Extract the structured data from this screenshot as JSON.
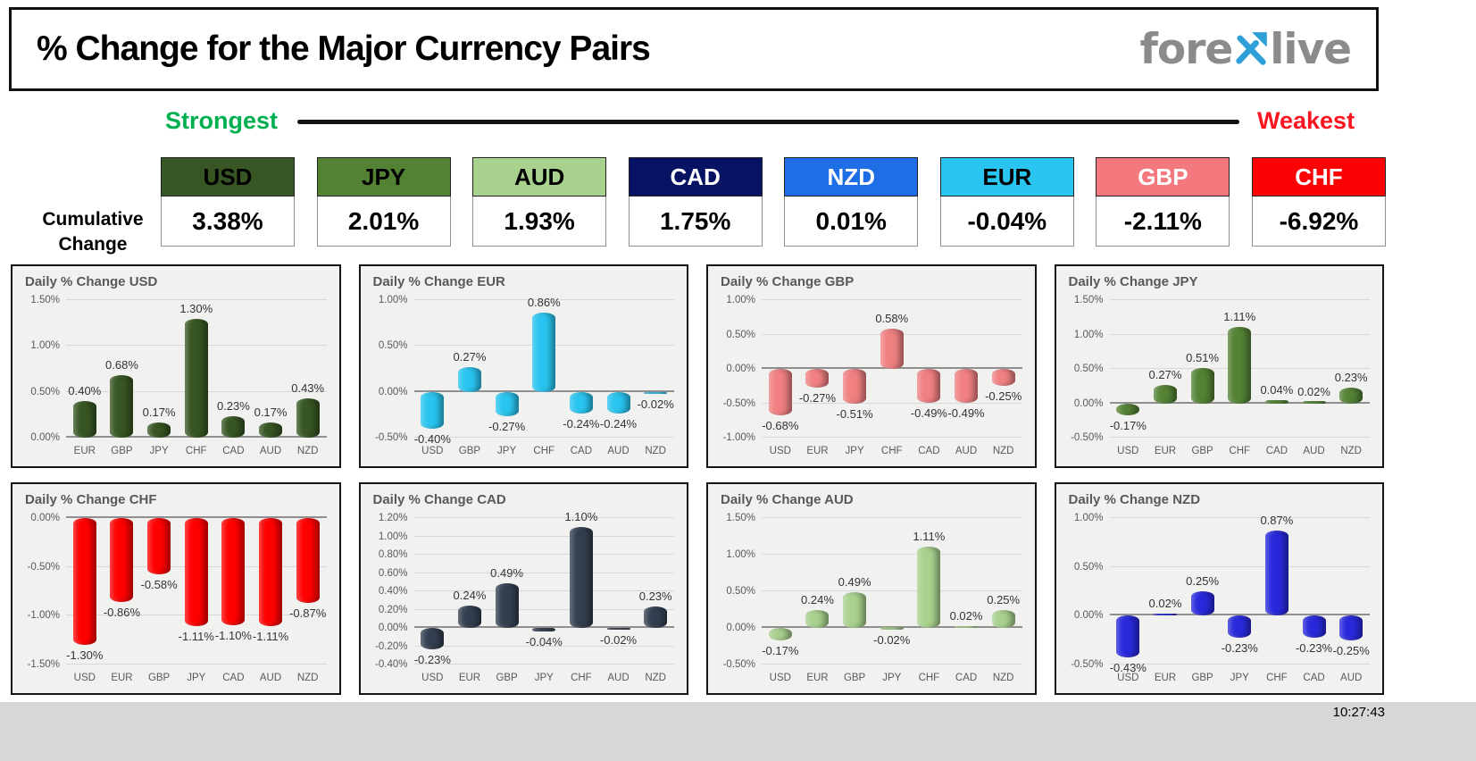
{
  "header": {
    "title": "% Change for the Major Currency Pairs",
    "logo_fore": "fore",
    "logo_live": "live",
    "logo_text_color": "#8b8b8b",
    "logo_x_color": "#2f9fd8"
  },
  "scale": {
    "strongest_label": "Strongest",
    "weakest_label": "Weakest",
    "strongest_color": "#00b050",
    "weakest_color": "#fb1520"
  },
  "cumulative_section": {
    "label": "Cumulative Change",
    "boxes": [
      {
        "code": "USD",
        "value": "3.38%",
        "bg": "#375623",
        "fg": "#000000"
      },
      {
        "code": "JPY",
        "value": "2.01%",
        "bg": "#548235",
        "fg": "#000000"
      },
      {
        "code": "AUD",
        "value": "1.93%",
        "bg": "#a9d18e",
        "fg": "#000000"
      },
      {
        "code": "CAD",
        "value": "1.75%",
        "bg": "#081263",
        "fg": "#ffffff"
      },
      {
        "code": "NZD",
        "value": "0.01%",
        "bg": "#1e6ee6",
        "fg": "#ffffff"
      },
      {
        "code": "EUR",
        "value": "-0.04%",
        "bg": "#29c5f0",
        "fg": "#000000"
      },
      {
        "code": "GBP",
        "value": "-2.11%",
        "bg": "#f4797f",
        "fg": "#ffffff"
      },
      {
        "code": "CHF",
        "value": "-6.92%",
        "bg": "#fb0205",
        "fg": "#ffffff"
      }
    ]
  },
  "chart_data": [
    {
      "type": "bar",
      "title": "Daily % Change USD",
      "color": "#375623",
      "categories": [
        "EUR",
        "GBP",
        "JPY",
        "CHF",
        "CAD",
        "AUD",
        "NZD"
      ],
      "values": [
        0.4,
        0.68,
        0.17,
        1.3,
        0.23,
        0.17,
        0.43
      ],
      "ylim": [
        0,
        1.5
      ],
      "ticks": [
        0,
        0.5,
        1.0,
        1.5
      ]
    },
    {
      "type": "bar",
      "title": "Daily % Change EUR",
      "color": "#29c5f0",
      "categories": [
        "USD",
        "GBP",
        "JPY",
        "CHF",
        "CAD",
        "AUD",
        "NZD"
      ],
      "values": [
        -0.4,
        0.27,
        -0.27,
        0.86,
        -0.24,
        -0.24,
        -0.02
      ],
      "ylim": [
        -0.5,
        1.0
      ],
      "ticks": [
        -0.5,
        0,
        0.5,
        1.0
      ]
    },
    {
      "type": "bar",
      "title": "Daily % Change GBP",
      "color": "#f08082",
      "categories": [
        "USD",
        "EUR",
        "JPY",
        "CHF",
        "CAD",
        "AUD",
        "NZD"
      ],
      "values": [
        -0.68,
        -0.27,
        -0.51,
        0.58,
        -0.49,
        -0.49,
        -0.25
      ],
      "ylim": [
        -1.0,
        1.0
      ],
      "ticks": [
        -1.0,
        -0.5,
        0,
        0.5,
        1.0
      ]
    },
    {
      "type": "bar",
      "title": "Daily % Change JPY",
      "color": "#548235",
      "categories": [
        "USD",
        "EUR",
        "GBP",
        "CHF",
        "CAD",
        "AUD",
        "NZD"
      ],
      "values": [
        -0.17,
        0.27,
        0.51,
        1.11,
        0.04,
        0.02,
        0.23
      ],
      "ylim": [
        -0.5,
        1.5
      ],
      "ticks": [
        -0.5,
        0,
        0.5,
        1.0,
        1.5
      ]
    },
    {
      "type": "bar",
      "title": "Daily % Change CHF",
      "color": "#fe0000",
      "categories": [
        "USD",
        "EUR",
        "GBP",
        "JPY",
        "CAD",
        "AUD",
        "NZD"
      ],
      "values": [
        -1.3,
        -0.86,
        -0.58,
        -1.11,
        -1.1,
        -1.11,
        -0.87
      ],
      "ylim": [
        -1.5,
        0
      ],
      "ticks": [
        -1.5,
        -1.0,
        -0.5,
        0
      ]
    },
    {
      "type": "bar",
      "title": "Daily % Change CAD",
      "color": "#333f50",
      "categories": [
        "USD",
        "EUR",
        "GBP",
        "JPY",
        "CHF",
        "AUD",
        "NZD"
      ],
      "values": [
        -0.23,
        0.24,
        0.49,
        -0.04,
        1.1,
        -0.02,
        0.23
      ],
      "ylim": [
        -0.4,
        1.2
      ],
      "ticks": [
        -0.4,
        -0.2,
        0,
        0.2,
        0.4,
        0.6,
        0.8,
        1.0,
        1.2
      ]
    },
    {
      "type": "bar",
      "title": "Daily % Change AUD",
      "color": "#a9d18e",
      "categories": [
        "USD",
        "EUR",
        "GBP",
        "JPY",
        "CHF",
        "CAD",
        "NZD"
      ],
      "values": [
        -0.17,
        0.24,
        0.49,
        -0.02,
        1.11,
        0.02,
        0.25
      ],
      "ylim": [
        -0.5,
        1.5
      ],
      "ticks": [
        -0.5,
        0,
        0.5,
        1.0,
        1.5
      ]
    },
    {
      "type": "bar",
      "title": "Daily % Change NZD",
      "color": "#2929dc",
      "categories": [
        "USD",
        "EUR",
        "GBP",
        "JPY",
        "CHF",
        "CAD",
        "AUD"
      ],
      "values": [
        -0.43,
        0.02,
        0.25,
        -0.23,
        0.87,
        -0.23,
        -0.25
      ],
      "ylim": [
        -0.5,
        1.0
      ],
      "ticks": [
        -0.5,
        0,
        0.5,
        1.0
      ]
    }
  ],
  "timestamp": "10:27:43"
}
